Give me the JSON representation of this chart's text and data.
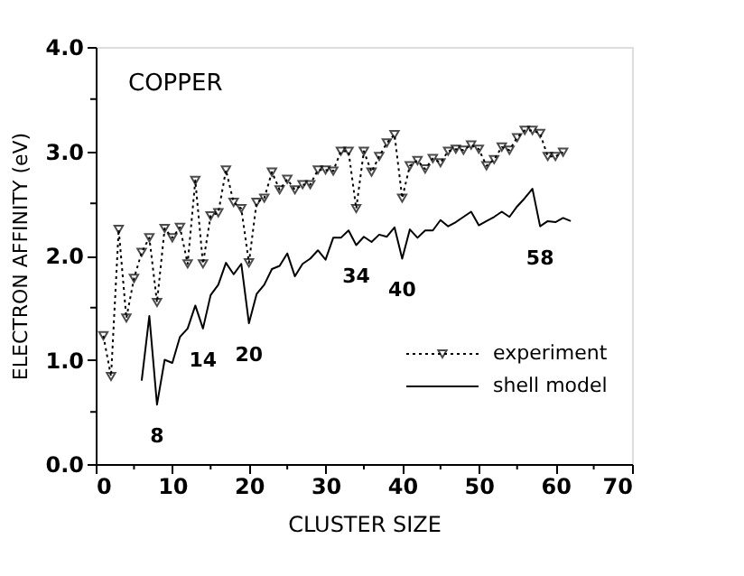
{
  "chart_data": {
    "type": "line",
    "xlabel": "CLUSTER SIZE",
    "ylabel": "ELECTRON AFFINITY (eV)",
    "xlim": [
      0,
      70
    ],
    "ylim": [
      0,
      4
    ],
    "xticks": [
      0,
      {
        "value": 5,
        "label": null
      },
      10,
      {
        "value": 15,
        "label": null
      },
      20,
      {
        "value": 25,
        "label": null
      },
      30,
      {
        "value": 35,
        "label": null
      },
      40,
      {
        "value": 45,
        "label": null
      },
      50,
      {
        "value": 55,
        "label": null
      },
      60,
      {
        "value": 65,
        "label": null
      },
      70
    ],
    "yticks": [
      {
        "value": 0,
        "label": "0.0"
      },
      {
        "value": 0.5,
        "label": null
      },
      {
        "value": 1,
        "label": "1.0"
      },
      {
        "value": 1.5,
        "label": null
      },
      {
        "value": 2,
        "label": "2.0"
      },
      {
        "value": 2.5,
        "label": null
      },
      {
        "value": 3,
        "label": "3.0"
      },
      {
        "value": 3.5,
        "label": null
      },
      {
        "value": 4,
        "label": "4.0"
      }
    ],
    "grid": false,
    "legend": "bottom right",
    "series": [
      {
        "name": "experiment",
        "color": "#000000",
        "marker": "triangle",
        "line_style": "dotted",
        "x": [
          1,
          2,
          3,
          4,
          5,
          6,
          7,
          8,
          9,
          10,
          11,
          12,
          13,
          14,
          15,
          16,
          17,
          18,
          19,
          20,
          21,
          22,
          23,
          24,
          25,
          26,
          27,
          28,
          29,
          30,
          31,
          32,
          33,
          34,
          35,
          36,
          37,
          38,
          39,
          40,
          41,
          42,
          43,
          44,
          45,
          46,
          47,
          48,
          49,
          50,
          51,
          52,
          53,
          54,
          55,
          56,
          57,
          58,
          59,
          60,
          61
        ],
        "values": [
          1.23,
          0.84,
          2.25,
          1.4,
          1.78,
          2.03,
          2.17,
          1.55,
          2.26,
          2.17,
          2.27,
          1.92,
          2.72,
          1.92,
          2.38,
          2.41,
          2.82,
          2.51,
          2.45,
          1.93,
          2.51,
          2.55,
          2.8,
          2.63,
          2.73,
          2.63,
          2.68,
          2.68,
          2.82,
          2.82,
          2.81,
          3.0,
          3.0,
          2.45,
          3.0,
          2.8,
          2.95,
          3.08,
          3.16,
          2.55,
          2.86,
          2.91,
          2.83,
          2.93,
          2.89,
          3.0,
          3.02,
          3.01,
          3.06,
          3.02,
          2.86,
          2.92,
          3.04,
          3.01,
          3.13,
          3.2,
          3.2,
          3.17,
          2.95,
          2.95,
          2.99
        ]
      },
      {
        "name": "shell model",
        "color": "#000000",
        "marker": "none",
        "line_style": "solid",
        "x": [
          6,
          7,
          8,
          9,
          10,
          11,
          12,
          13,
          14,
          15,
          16,
          17,
          18,
          19,
          20,
          21,
          22,
          23,
          24,
          25,
          26,
          27,
          28,
          29,
          30,
          31,
          32,
          33,
          34,
          35,
          36,
          37,
          38,
          39,
          40,
          41,
          42,
          43,
          44,
          45,
          46,
          47,
          48,
          49,
          50,
          51,
          52,
          53,
          54,
          55,
          56,
          57,
          58,
          59,
          60,
          61,
          62
        ],
        "values": [
          0.8,
          1.42,
          0.57,
          1.0,
          0.97,
          1.22,
          1.3,
          1.52,
          1.3,
          1.62,
          1.72,
          1.93,
          1.82,
          1.92,
          1.35,
          1.63,
          1.72,
          1.87,
          1.9,
          2.02,
          1.8,
          1.92,
          1.97,
          2.05,
          1.96,
          2.17,
          2.17,
          2.24,
          2.1,
          2.18,
          2.13,
          2.2,
          2.18,
          2.27,
          1.97,
          2.25,
          2.17,
          2.24,
          2.24,
          2.34,
          2.28,
          2.32,
          2.37,
          2.42,
          2.29,
          2.33,
          2.37,
          2.42,
          2.37,
          2.47,
          2.55,
          2.64,
          2.28,
          2.33,
          2.32,
          2.36,
          2.33
        ]
      }
    ],
    "annotations": [
      "COPPER",
      {
        "text": "8",
        "x": 8,
        "y": 0.57
      },
      {
        "text": "14",
        "x": 14,
        "y": 1.3
      },
      {
        "text": "20",
        "x": 20,
        "y": 1.35
      },
      {
        "text": "34",
        "x": 34,
        "y": 2.1
      },
      {
        "text": "40",
        "x": 40,
        "y": 1.97
      },
      {
        "text": "58",
        "x": 58,
        "y": 2.28
      }
    ]
  }
}
